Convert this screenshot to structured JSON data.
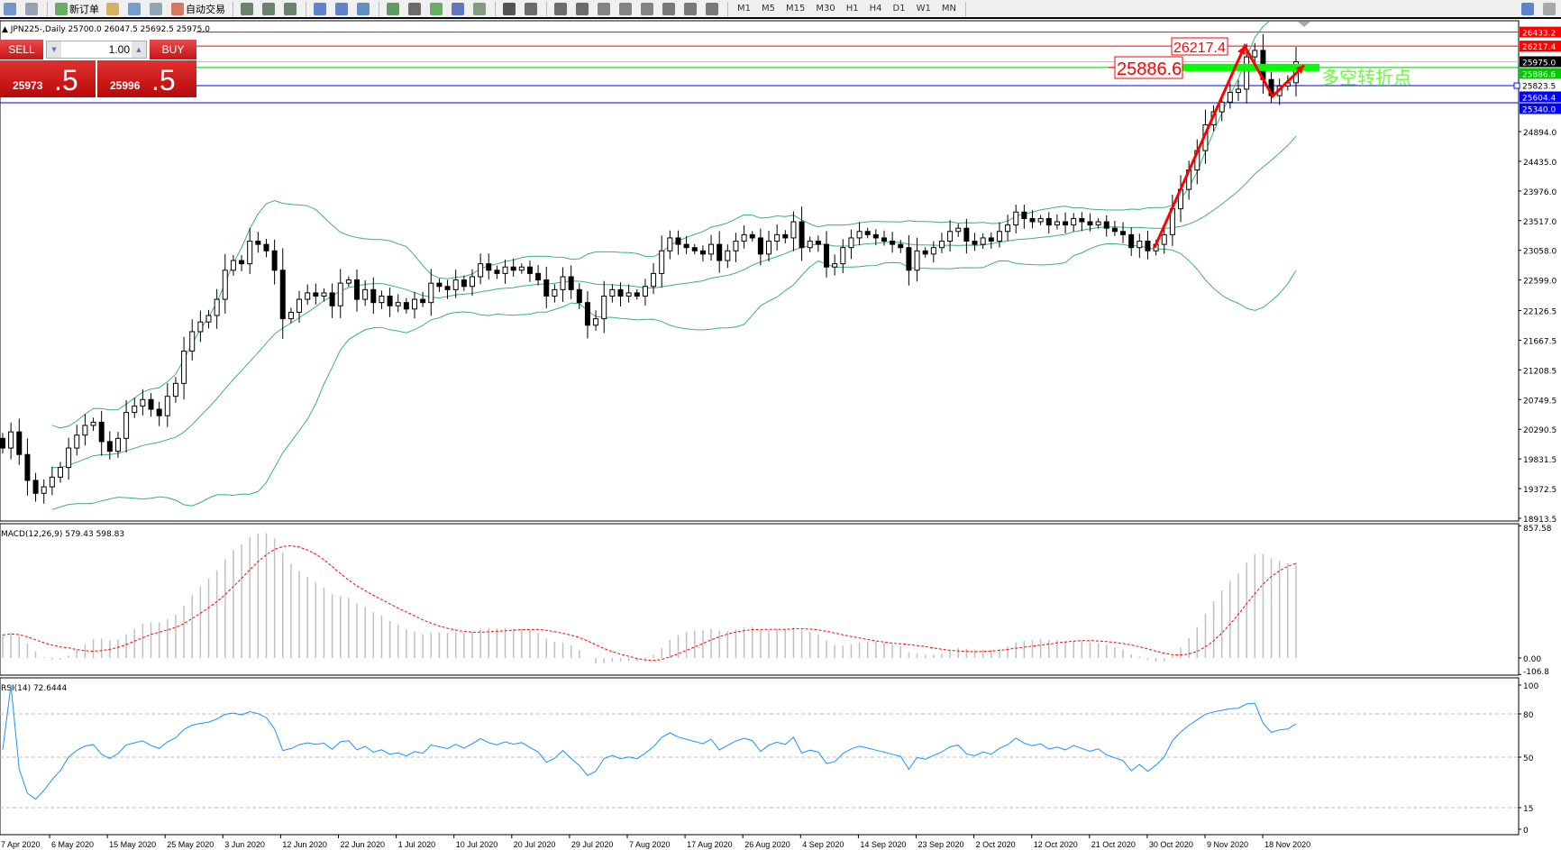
{
  "toolbar": {
    "new_order_label": "新订单",
    "auto_trading_label": "自动交易",
    "timeframes": [
      "M1",
      "M5",
      "M15",
      "M30",
      "H1",
      "H4",
      "D1",
      "W1",
      "MN"
    ],
    "icons": [
      "list-icon",
      "navigator-icon",
      "new-order-icon",
      "market-watch-icon",
      "data-window-icon",
      "signal-icon",
      "auto-trading-icon",
      "bar-chart-icon",
      "candlestick-icon",
      "line-chart-icon",
      "zoom-in-icon",
      "zoom-out-icon",
      "tile-windows-icon",
      "auto-scroll-icon",
      "chart-shift-icon",
      "indicators-icon",
      "periods-icon",
      "templates-icon",
      "cursor-icon",
      "crosshair-icon",
      "vertical-line-icon",
      "horizontal-line-icon",
      "trendline-icon",
      "fibonacci-fan-icon",
      "fibonacci-icon",
      "text-icon",
      "text-label-icon",
      "arrows-icon",
      "search-icon",
      "chat-icon"
    ]
  },
  "chart": {
    "title": "JPN225-,Daily  25700.0 26047.5 25692.5 25975.0",
    "colors": {
      "bull_fill": "#ffffff",
      "bear_fill": "#000000",
      "bands": "#3cb371",
      "red_line": "#ff0000",
      "blue_line": "#0000ff",
      "green_line": "#00c800",
      "bid_line": "#c0c0c0",
      "macd_hist": "#c0c0c0",
      "macd_signal": "#ff0000",
      "rsi": "#1e90ff"
    }
  },
  "trade_panel": {
    "sell_label": "SELL",
    "buy_label": "BUY",
    "lot": "1.00",
    "sell_price_main": "25973",
    "sell_price_frac": ".5",
    "buy_price_main": "25996",
    "buy_price_frac": ".5"
  },
  "levels": [
    {
      "value": 26433.2,
      "label": "26433.2",
      "color": "#ff0000",
      "label_bg": "#ff0000"
    },
    {
      "value": 26217.4,
      "label": "26217.4",
      "color": "#ff0000",
      "label_bg": "#ff0000"
    },
    {
      "value": 25975.0,
      "label": "25975.0",
      "color": "#c0c0c0",
      "label_bg": "#000000"
    },
    {
      "value": 25886.6,
      "label": "25886.6",
      "color": "#00c800",
      "label_bg": "#00c800"
    },
    {
      "value": 25823.5,
      "label": "25823.5",
      "color": "none",
      "label_bg": "none"
    },
    {
      "value": 25604.4,
      "label": "25604.4",
      "color": "#0000ff",
      "label_bg": "#0000ff"
    },
    {
      "value": 25340.0,
      "label": "25340.0",
      "color": "#0000ff",
      "label_bg": "#0000ff"
    }
  ],
  "annotations": {
    "high_box": "26217.4",
    "pivot_box": "25886.6",
    "pivot_text": "多空转折点",
    "pivot_text_color": "#66ff33",
    "arrow_path_prices": [
      23100,
      26217.4,
      25440,
      25920
    ]
  },
  "chart_data": {
    "type": "candlestick",
    "symbol": "JPN225-",
    "timeframe": "Daily",
    "ohlc_last": {
      "open": 25700.0,
      "high": 26047.5,
      "low": 25692.5,
      "close": 25975.0
    },
    "y_ticks": [
      "24894.0",
      "24435.0",
      "23976.0",
      "23517.0",
      "23058.0",
      "22599.0",
      "22126.5",
      "21667.5",
      "21208.5",
      "20749.5",
      "20290.5",
      "19831.5",
      "19372.5",
      "18913.5"
    ],
    "ylim": [
      18913.5,
      26433.2
    ],
    "x_ticks": [
      "7 Apr 2020",
      "6 May 2020",
      "15 May 2020",
      "25 May 2020",
      "3 Jun 2020",
      "12 Jun 2020",
      "22 Jun 2020",
      "1 Jul 2020",
      "10 Jul 2020",
      "20 Jul 2020",
      "29 Jul 2020",
      "7 Aug 2020",
      "17 Aug 2020",
      "26 Aug 2020",
      "4 Sep 2020",
      "14 Sep 2020",
      "23 Sep 2020",
      "2 Oct 2020",
      "12 Oct 2020",
      "21 Oct 2020",
      "30 Oct 2020",
      "9 Nov 2020",
      "18 Nov 2020"
    ],
    "closes": [
      20000,
      20250,
      19900,
      19500,
      19300,
      19400,
      19550,
      19700,
      20000,
      20200,
      20350,
      20400,
      20100,
      19950,
      20150,
      20550,
      20650,
      20750,
      20600,
      20500,
      20800,
      21000,
      21500,
      21800,
      21950,
      22050,
      22300,
      22750,
      22900,
      22850,
      23200,
      23150,
      23050,
      22750,
      22000,
      22100,
      22300,
      22400,
      22350,
      22400,
      22200,
      22550,
      22600,
      22300,
      22450,
      22250,
      22350,
      22200,
      22250,
      22150,
      22300,
      22250,
      22550,
      22500,
      22450,
      22600,
      22500,
      22650,
      22850,
      22750,
      22700,
      22800,
      22750,
      22800,
      22700,
      22600,
      22350,
      22450,
      22650,
      22450,
      22250,
      21900,
      22000,
      22350,
      22450,
      22350,
      22400,
      22350,
      22500,
      22700,
      23050,
      23250,
      23150,
      23100,
      23050,
      23000,
      23150,
      22900,
      23050,
      23200,
      23300,
      23250,
      23000,
      23200,
      23300,
      23250,
      23500,
      23100,
      23200,
      23150,
      22800,
      22850,
      23100,
      23250,
      23350,
      23300,
      23250,
      23200,
      23150,
      23100,
      22750,
      23050,
      23000,
      23100,
      23200,
      23350,
      23400,
      23200,
      23150,
      23250,
      23200,
      23350,
      23450,
      23650,
      23550,
      23500,
      23550,
      23450,
      23500,
      23450,
      23550,
      23500,
      23450,
      23500,
      23400,
      23350,
      23300,
      23100,
      23200,
      23050,
      23150,
      23300,
      23700,
      24000,
      24300,
      24600,
      25000,
      25200,
      25350,
      25500,
      25550,
      26050,
      26150,
      25700,
      25450,
      25600,
      25650,
      25975
    ],
    "indicators": {
      "bollinger": {
        "period": 20,
        "deviation": 2
      },
      "macd": {
        "label": "MACD(12,26,9) 579.43 598.83",
        "fast": 12,
        "slow": 26,
        "signal": 9,
        "ticks": [
          "857.58",
          "0.00",
          "-106.8"
        ],
        "ylim": [
          -106.8,
          857.58
        ]
      },
      "rsi": {
        "label": "RSI(14) 72.6444",
        "period": 14,
        "ticks": [
          "100",
          "80",
          "50",
          "15",
          "0"
        ],
        "levels": [
          80,
          50,
          15
        ]
      }
    }
  }
}
